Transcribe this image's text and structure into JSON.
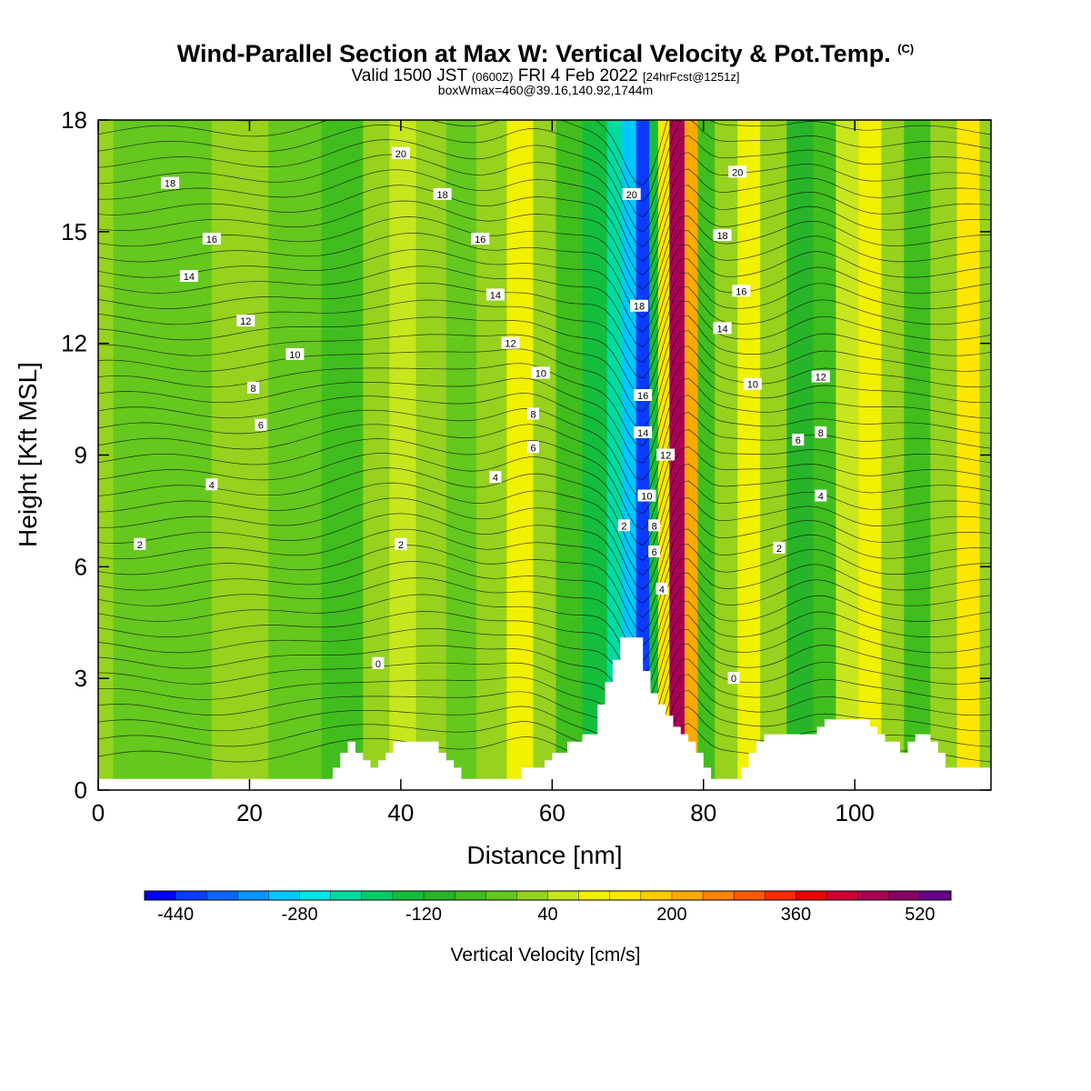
{
  "header": {
    "title": "Wind-Parallel Section at Max W: Vertical Velocity & Pot.Temp.",
    "copyright": "(C)",
    "valid_prefix": "Valid 1500 JST",
    "valid_utc": "(0600Z)",
    "valid_date": "FRI 4 Feb 2022",
    "forecast": "[24hrFcst@1251z]",
    "boxwmax": "boxWmax=460@39.16,140.92,1744m"
  },
  "chart_data": {
    "type": "heatmap",
    "title": "Wind-Parallel Section at Max W: Vertical Velocity & Pot.Temp.",
    "xlabel": "Distance [nm]",
    "ylabel": "Height [Kft MSL]",
    "xlim": [
      0,
      118
    ],
    "ylim": [
      0,
      18
    ],
    "x_ticks": [
      "0",
      "20",
      "40",
      "60",
      "80",
      "100"
    ],
    "y_ticks": [
      "0",
      "3",
      "6",
      "9",
      "12",
      "15",
      "18"
    ],
    "grid": false,
    "fill_variable": "Vertical Velocity",
    "colorbar": {
      "label": "Vertical Velocity [cm/s]",
      "tick_labels": [
        "-440",
        "-280",
        "-120",
        "40",
        "200",
        "360",
        "520"
      ],
      "min": -480,
      "step": 40,
      "colors": [
        "#0000ff",
        "#0a3cff",
        "#0f64ff",
        "#0a96ff",
        "#00c8ff",
        "#00e6e6",
        "#00dca0",
        "#00cc6a",
        "#14be3c",
        "#28b428",
        "#41be1e",
        "#64c81e",
        "#96d21e",
        "#c8e61e",
        "#f0f000",
        "#ffe600",
        "#ffcc00",
        "#ffaa00",
        "#ff8200",
        "#ff5a00",
        "#ff2800",
        "#ee0000",
        "#cc0033",
        "#aa0055",
        "#880066",
        "#660088"
      ]
    },
    "velocity_bands": [
      {
        "x": 0,
        "w": 0
      },
      {
        "x": 4,
        "w": -40
      },
      {
        "x": 11,
        "w": -20
      },
      {
        "x": 19,
        "w": 0
      },
      {
        "x": 26,
        "w": -30
      },
      {
        "x": 33,
        "w": -50
      },
      {
        "x": 37,
        "w": 20
      },
      {
        "x": 40,
        "w": 70
      },
      {
        "x": 44,
        "w": 20
      },
      {
        "x": 48,
        "w": -40
      },
      {
        "x": 52,
        "w": 30
      },
      {
        "x": 56,
        "w": 90
      },
      {
        "x": 59,
        "w": 20
      },
      {
        "x": 62,
        "w": -80
      },
      {
        "x": 66,
        "w": -140
      },
      {
        "x": 68.5,
        "w": -240
      },
      {
        "x": 70,
        "w": -300
      },
      {
        "x": 72.2,
        "w": -440
      },
      {
        "x": 73.5,
        "w": -150
      },
      {
        "x": 74.5,
        "w": 150
      },
      {
        "x": 76.5,
        "w": 460
      },
      {
        "x": 78.5,
        "w": 200
      },
      {
        "x": 80,
        "w": -60
      },
      {
        "x": 83,
        "w": 20
      },
      {
        "x": 86,
        "w": 80
      },
      {
        "x": 89,
        "w": 10
      },
      {
        "x": 93,
        "w": -100
      },
      {
        "x": 96,
        "w": -60
      },
      {
        "x": 99,
        "w": 40
      },
      {
        "x": 102,
        "w": 100
      },
      {
        "x": 105,
        "w": 20
      },
      {
        "x": 108,
        "w": -50
      },
      {
        "x": 112,
        "w": 30
      },
      {
        "x": 115,
        "w": 120
      },
      {
        "x": 118,
        "w": 30
      }
    ],
    "terrain": {
      "x": [
        0,
        30,
        31,
        32,
        33,
        34,
        35,
        36,
        37,
        38,
        39,
        40,
        44,
        45,
        46,
        47,
        48,
        49,
        50,
        55,
        56,
        57,
        58,
        59,
        60,
        61,
        62,
        63,
        64,
        65,
        66,
        67,
        68,
        69,
        70,
        71,
        72,
        73,
        74,
        75,
        76,
        77,
        78,
        79,
        80,
        81,
        82,
        84,
        85,
        86,
        87,
        88,
        89,
        90,
        92,
        93,
        94,
        95,
        96,
        97,
        98,
        99,
        100,
        101,
        102,
        103,
        104,
        105,
        106,
        107,
        108,
        109,
        110,
        111,
        112,
        113,
        114,
        118
      ],
      "height_kft": [
        0.3,
        0.3,
        0.6,
        1.0,
        1.3,
        1.0,
        0.8,
        0.6,
        0.8,
        1.0,
        1.3,
        1.3,
        1.3,
        1.0,
        0.8,
        0.6,
        0.3,
        0.3,
        0.3,
        0.3,
        0.6,
        0.6,
        0.6,
        0.8,
        1.0,
        1.0,
        1.3,
        1.3,
        1.5,
        1.5,
        2.3,
        2.9,
        3.5,
        4.1,
        4.1,
        4.1,
        3.2,
        2.6,
        2.3,
        2.0,
        1.7,
        1.5,
        1.3,
        1.0,
        0.6,
        0.3,
        0.3,
        0.3,
        0.6,
        1.0,
        1.3,
        1.5,
        1.5,
        1.5,
        1.5,
        1.5,
        1.5,
        1.7,
        1.9,
        1.9,
        1.9,
        1.9,
        1.9,
        1.9,
        1.7,
        1.5,
        1.3,
        1.3,
        1.0,
        1.3,
        1.5,
        1.5,
        1.3,
        1.0,
        0.6,
        0.6,
        0.6,
        0.6
      ]
    },
    "contour_labels": [
      {
        "text": "20",
        "x": 40.0,
        "y": 17.1
      },
      {
        "text": "18",
        "x": 9.5,
        "y": 16.3
      },
      {
        "text": "18",
        "x": 45.5,
        "y": 16.0
      },
      {
        "text": "16",
        "x": 15.0,
        "y": 14.8
      },
      {
        "text": "16",
        "x": 50.5,
        "y": 14.8
      },
      {
        "text": "14",
        "x": 12.0,
        "y": 13.8
      },
      {
        "text": "14",
        "x": 52.5,
        "y": 13.3
      },
      {
        "text": "12",
        "x": 19.5,
        "y": 12.6
      },
      {
        "text": "12",
        "x": 54.5,
        "y": 12.0
      },
      {
        "text": "10",
        "x": 26.0,
        "y": 11.7
      },
      {
        "text": "10",
        "x": 58.5,
        "y": 11.2
      },
      {
        "text": "8",
        "x": 20.5,
        "y": 10.8
      },
      {
        "text": "8",
        "x": 57.5,
        "y": 10.1
      },
      {
        "text": "6",
        "x": 21.5,
        "y": 9.8
      },
      {
        "text": "6",
        "x": 57.5,
        "y": 9.2
      },
      {
        "text": "4",
        "x": 15.0,
        "y": 8.2
      },
      {
        "text": "4",
        "x": 52.5,
        "y": 8.4
      },
      {
        "text": "2",
        "x": 5.5,
        "y": 6.6
      },
      {
        "text": "2",
        "x": 40.0,
        "y": 6.6
      },
      {
        "text": "0",
        "x": 37.0,
        "y": 3.4
      },
      {
        "text": "20",
        "x": 70.5,
        "y": 16.0
      },
      {
        "text": "18",
        "x": 71.5,
        "y": 13.0
      },
      {
        "text": "16",
        "x": 72.0,
        "y": 10.6
      },
      {
        "text": "14",
        "x": 72.0,
        "y": 9.6
      },
      {
        "text": "12",
        "x": 75.0,
        "y": 9.0
      },
      {
        "text": "10",
        "x": 72.5,
        "y": 7.9
      },
      {
        "text": "8",
        "x": 73.5,
        "y": 7.1
      },
      {
        "text": "6",
        "x": 73.5,
        "y": 6.4
      },
      {
        "text": "4",
        "x": 74.5,
        "y": 5.4
      },
      {
        "text": "2",
        "x": 69.5,
        "y": 7.1
      },
      {
        "text": "20",
        "x": 84.5,
        "y": 16.6
      },
      {
        "text": "18",
        "x": 82.5,
        "y": 14.9
      },
      {
        "text": "16",
        "x": 85.0,
        "y": 13.4
      },
      {
        "text": "14",
        "x": 82.5,
        "y": 12.4
      },
      {
        "text": "10",
        "x": 86.5,
        "y": 10.9
      },
      {
        "text": "12",
        "x": 95.5,
        "y": 11.1
      },
      {
        "text": "8",
        "x": 95.5,
        "y": 9.6
      },
      {
        "text": "6",
        "x": 92.5,
        "y": 9.4
      },
      {
        "text": "4",
        "x": 95.5,
        "y": 7.9
      },
      {
        "text": "2",
        "x": 90.0,
        "y": 6.5
      },
      {
        "text": "0",
        "x": 84.0,
        "y": 3.0
      }
    ]
  }
}
